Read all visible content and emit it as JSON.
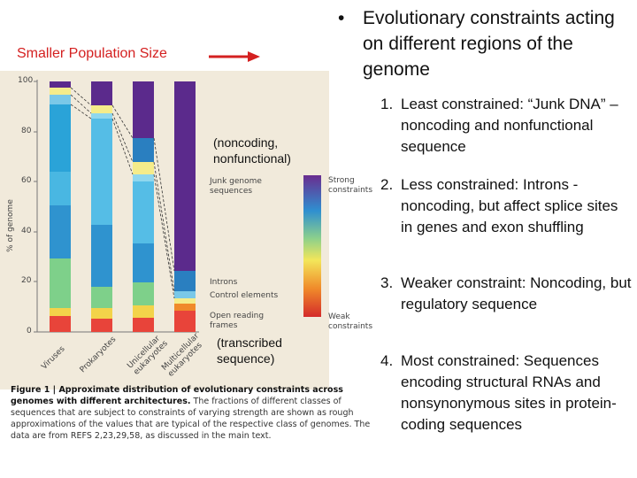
{
  "left_label": "Smaller Population Size",
  "bullet_char": "•",
  "title": "Evolutionary constraints acting on different regions of the genome",
  "items": [
    {
      "num": "1.",
      "text": "Least constrained: “Junk DNA” – noncoding and nonfunctional sequence"
    },
    {
      "num": "2.",
      "text": "Less constrained: Introns - noncoding, but affect splice sites in genes and exon shuffling"
    },
    {
      "num": "3.",
      "text": "Weaker constraint: Noncoding, but regulatory sequence"
    },
    {
      "num": "4.",
      "text": "Most constrained: Sequences encoding structural RNAs and nonsynonymous sites in protein-coding sequences"
    }
  ],
  "notes": {
    "noncoding": "(noncoding, nonfunctional)",
    "transcribed": "(transcribed sequence)"
  },
  "figure": {
    "y_axis_label": "% of genome",
    "y_ticks": [
      "100",
      "80",
      "60",
      "40",
      "20",
      "0"
    ],
    "x_categories": [
      "Viruses",
      "Prokaryotes",
      "Unicellular eukaryotes",
      "Multicellular eukaryotes"
    ],
    "segment_labels": {
      "junk": "Junk genome sequences",
      "introns": "Introns",
      "control": "Control elements",
      "orf": "Open reading frames"
    },
    "scale_labels": {
      "strong": "Strong constraints",
      "weak": "Weak constraints"
    },
    "caption_bold": "Figure 1 | Approximate distribution of evolutionary constraints across genomes with different architectures.",
    "caption_rest": "The fractions of different classes of sequences that are subject to constraints of varying strength are shown as rough approximations of the values that are typical of the respective class of genomes. The data are from REFS 2,23,29,58, as discussed in the main text.",
    "colors": {
      "junk": "#5b2a8c",
      "introns": "#2b7fc2",
      "control": "#7ac8e8",
      "orf": "#e8443a",
      "bg": "#f1eadb"
    }
  }
}
